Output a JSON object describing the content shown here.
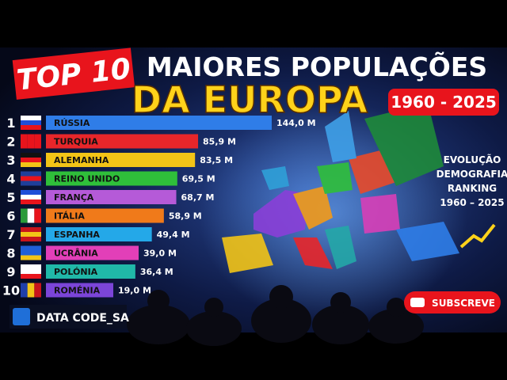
{
  "chart_data": {
    "type": "bar",
    "orientation": "horizontal",
    "badge": "TOP 10",
    "title": "MAIORES POPULAÇÕES",
    "subtitle": "DA EUROPA",
    "period": "1960 - 2025",
    "ranks": [
      1,
      2,
      3,
      4,
      5,
      6,
      7,
      8,
      9,
      10
    ],
    "categories": [
      "RÚSSIA",
      "TURQUIA",
      "ALEMANHA",
      "REINO UNIDO",
      "FRANÇA",
      "ITÁLIA",
      "ESPANHA",
      "UCRÂNIA",
      "POLÓNIA",
      "ROMÉNIA"
    ],
    "values": [
      144.0,
      85.9,
      83.5,
      69.5,
      68.7,
      58.9,
      49.4,
      39.0,
      36.4,
      19.0
    ],
    "value_labels": [
      "144,0 M",
      "85,9 M",
      "83,5 M",
      "69,5 M",
      "68,7 M",
      "58,9 M",
      "49,4 M",
      "39,0 M",
      "36,4 M",
      "19,0 M"
    ],
    "colors": [
      "#2f7de8",
      "#e8262a",
      "#f2c417",
      "#2fbf3a",
      "#b55ad8",
      "#f07a1a",
      "#24a8e8",
      "#e23fb8",
      "#20b8a8",
      "#7b45d8"
    ]
  },
  "side_text": [
    "EVOLUÇÃO",
    "DEMOGRAFIA",
    "RANKING",
    "1960 – 2025"
  ],
  "subscribe": "SUBSCREVE",
  "channel": "DATA CODE_SA"
}
